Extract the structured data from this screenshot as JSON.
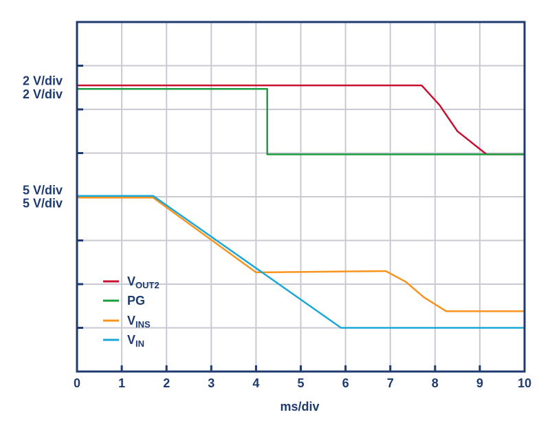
{
  "chart_data": {
    "type": "line",
    "xlabel": "ms/div",
    "x_ticks": [
      "0",
      "1",
      "2",
      "3",
      "4",
      "5",
      "6",
      "7",
      "8",
      "9",
      "10"
    ],
    "xlim": [
      0,
      10
    ],
    "ylim": [
      0,
      8
    ],
    "grid": true,
    "legend_position": "bottom-left",
    "scale_labels": [
      {
        "text": "2 V/div",
        "level": 6.65
      },
      {
        "text": "2 V/div",
        "level": 6.35
      },
      {
        "text": "5 V/div",
        "level": 4.15
      },
      {
        "text": "5 V/div",
        "level": 3.85
      }
    ],
    "series": [
      {
        "name": "VOUT2",
        "name_main": "V",
        "name_sub": "OUT2",
        "color": "#c8102e",
        "x": [
          0,
          7.7,
          8.1,
          8.5,
          9.15,
          10
        ],
        "y": [
          6.55,
          6.55,
          6.1,
          5.5,
          4.97,
          4.97
        ]
      },
      {
        "name": "PG",
        "name_main": "PG",
        "name_sub": "",
        "color": "#1a9e3f",
        "x": [
          0,
          4.25,
          4.25,
          10
        ],
        "y": [
          6.47,
          6.47,
          4.97,
          4.97
        ]
      },
      {
        "name": "VINS",
        "name_main": "V",
        "name_sub": "INS",
        "color": "#f7941d",
        "x": [
          0,
          1.7,
          4.0,
          6.9,
          7.35,
          7.75,
          8.25,
          10
        ],
        "y": [
          3.98,
          3.98,
          2.27,
          2.3,
          2.05,
          1.7,
          1.38,
          1.38
        ]
      },
      {
        "name": "VIN",
        "name_main": "V",
        "name_sub": "IN",
        "color": "#1aa7d8",
        "x": [
          0,
          1.7,
          5.9,
          10
        ],
        "y": [
          4.02,
          4.02,
          1.0,
          1.0
        ]
      }
    ]
  }
}
